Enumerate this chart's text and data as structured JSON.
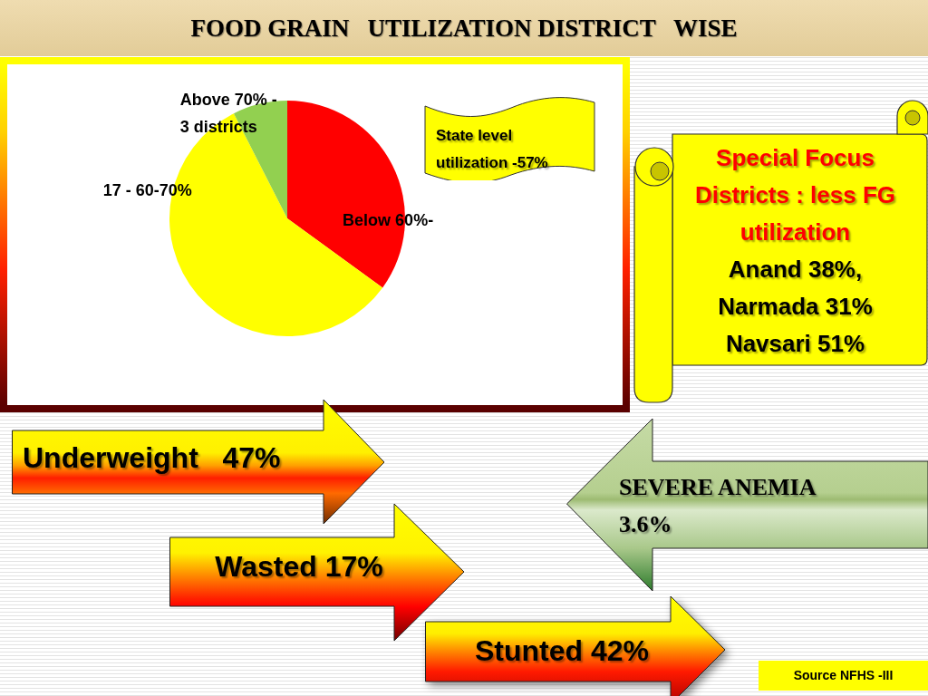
{
  "chart_data": {
    "type": "pie",
    "title": "FOOD GRAIN   UTILIZATION DISTRICT   WISE",
    "categories": [
      "Below 60%-",
      "17 - 60-70%",
      "Above 70% -\n3 districts"
    ],
    "values": [
      35,
      57.5,
      7.5
    ],
    "colors": [
      "#ff0000",
      "#ffff00",
      "#92d050"
    ],
    "annotations": [
      "State level\nutilization -57%",
      "Special Focus\nDistricts : less FG\nutilization",
      "Anand 38%,\nNarmada 31%\nNavsari 51%",
      "Underweight   47%",
      "Wasted 17%",
      "Stunted 42%",
      "SEVERE ANEMIA\n3.6%",
      "Source NFHS -III"
    ]
  }
}
